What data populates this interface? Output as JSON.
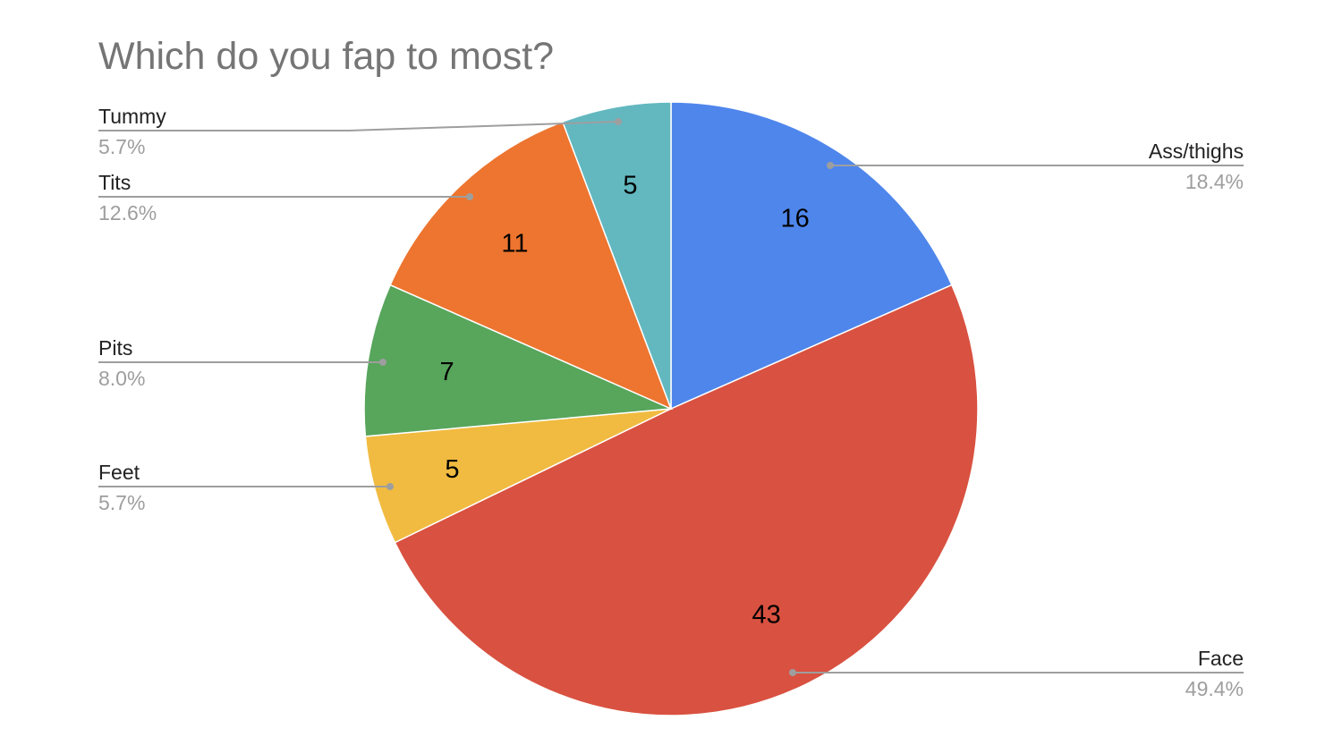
{
  "chart_data": {
    "type": "pie",
    "title": "Which do you fap to most?",
    "slices": [
      {
        "label": "Ass/thighs",
        "value": 16,
        "percent": "18.4%",
        "color": "#4f86ec"
      },
      {
        "label": "Face",
        "value": 43,
        "percent": "49.4%",
        "color": "#d95140"
      },
      {
        "label": "Feet",
        "value": 5,
        "percent": "5.7%",
        "color": "#f1bb41"
      },
      {
        "label": "Pits",
        "value": 7,
        "percent": "8.0%",
        "color": "#58a55c"
      },
      {
        "label": "Tits",
        "value": 11,
        "percent": "12.6%",
        "color": "#ed752f"
      },
      {
        "label": "Tummy",
        "value": 5,
        "percent": "5.7%",
        "color": "#63b8c0"
      }
    ],
    "legend": "callout-labels"
  }
}
